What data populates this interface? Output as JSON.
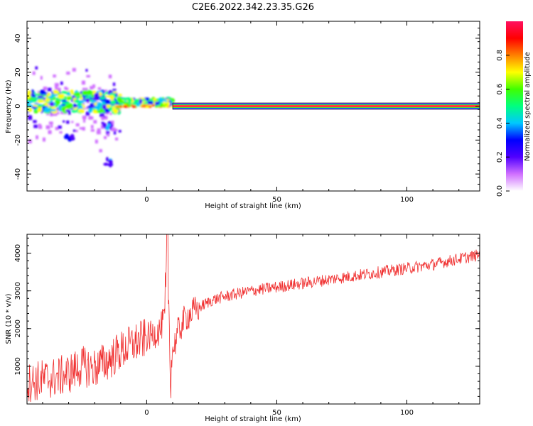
{
  "title": "C2E6.2022.342.23.35.G26",
  "colors": {
    "snr_line": "#f03030",
    "axis": "#000000"
  },
  "chart_data": [
    {
      "type": "heatmap",
      "xlabel": "Height of straight line (km)",
      "ylabel": "Frequency (Hz)",
      "xlim": [
        -46,
        128
      ],
      "ylim": [
        -50,
        50
      ],
      "xticks": [
        0,
        50,
        100
      ],
      "yticks": [
        -40,
        -20,
        0,
        20,
        40
      ],
      "xticklabels": [
        "0",
        "50",
        "100"
      ],
      "yticklabels": [
        "-40",
        "-20",
        "0",
        "20",
        "40"
      ],
      "colorbar": {
        "label": "Normalized spectral amplitude",
        "range": [
          0,
          1
        ],
        "ticks": [
          0,
          0.2,
          0.4,
          0.6,
          0.8
        ],
        "ticklabels": [
          "0.0",
          "0.2",
          "0.4",
          "0.6",
          "0.8"
        ],
        "colormap": [
          "#ffffff",
          "#d070ff",
          "#5000ff",
          "#0000ff",
          "#00c8ff",
          "#00ff80",
          "#40ff00",
          "#ffff00",
          "#ff8000",
          "#ff0000",
          "#ff1060"
        ]
      },
      "band_centerline_hz": 0,
      "clean_tone": {
        "x_start": 10,
        "x_end": 128,
        "freq_hz": 0
      },
      "noisy_region": {
        "x_start": -46,
        "x_end": 10
      }
    },
    {
      "type": "line",
      "xlabel": "Height of straight line (km)",
      "ylabel": "SNR (10 * v/v)",
      "xlim": [
        -46,
        128
      ],
      "ylim": [
        0,
        4500
      ],
      "xticks": [
        0,
        50,
        100
      ],
      "yticks": [
        1000,
        2000,
        3000,
        4000
      ],
      "xticklabels": [
        "0",
        "50",
        "100"
      ],
      "yticklabels": [
        "1000",
        "2000",
        "3000",
        "4000"
      ],
      "series": [
        {
          "x": [
            -46,
            -40,
            -35,
            -30,
            -25,
            -20,
            -15,
            -10,
            -5,
            0,
            5,
            7,
            8,
            9,
            10,
            12,
            15,
            20,
            25,
            30,
            40,
            50,
            60,
            70,
            80,
            90,
            100,
            110,
            120,
            128
          ],
          "values": [
            550,
            650,
            700,
            800,
            1000,
            950,
            1150,
            1400,
            1600,
            1750,
            1950,
            2300,
            4400,
            900,
            1400,
            1900,
            2300,
            2550,
            2750,
            2850,
            3000,
            3100,
            3200,
            3300,
            3400,
            3500,
            3600,
            3700,
            3850,
            3950
          ]
        }
      ]
    }
  ]
}
